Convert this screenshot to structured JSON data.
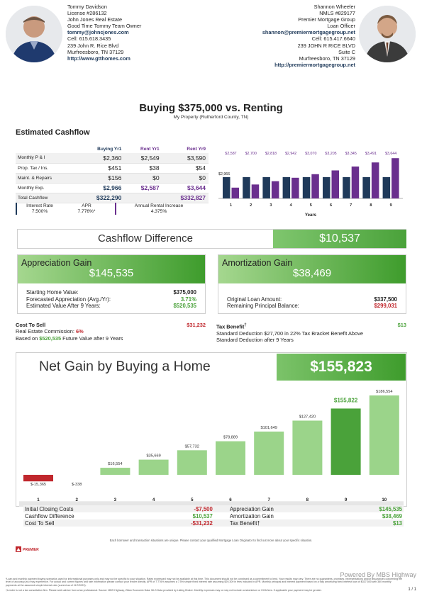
{
  "agents": {
    "left": {
      "name": "Tommy Davidson",
      "license": "License #286132",
      "company": "John Jones Real Estate",
      "team": "Good Time Tommy Team Owner",
      "email": "tommy@johncjones.com",
      "cell": "Cell: 615.618.3435",
      "address1": "239 John R. Rice Blvd",
      "address2": "Murfreesboro,  TN  37129",
      "website": "http://www.gtthomes.com"
    },
    "right": {
      "name": "Shannon Wheeler",
      "nmls": "NMLS #829177",
      "company": "Premier Mortgage Group",
      "role": "Loan Officer",
      "email": "shannon@premiermortgagegroup.net",
      "cell": "Cell: 615.417.6640",
      "address1": "239 JOHN R RICE BLVD",
      "address2": "Suite C",
      "address3": "Murfreesboro,  TN  37129",
      "website": "http://premiermortgagegroup.net"
    }
  },
  "title": "Buying $375,000 vs. Renting",
  "subtitle": "My Property (Rutherford County, TN)",
  "cashflow": {
    "heading": "Estimated Cashflow",
    "columns": [
      "Buying Yr1",
      "Rent Yr1",
      "Rent Yr9"
    ],
    "rows": [
      {
        "label": "Monthly P & I",
        "buy": "$2,360",
        "rent1": "$2,549",
        "rent9": "$3,590"
      },
      {
        "label": "Prop. Tax / Ins.",
        "buy": "$451",
        "rent1": "$38",
        "rent9": "$54"
      },
      {
        "label": "Maint. & Repairs",
        "buy": "$156",
        "rent1": "$0",
        "rent9": "$0"
      },
      {
        "label": "Monthly Exp.",
        "buy": "$2,966",
        "rent1": "$2,587",
        "rent9": "$3,644"
      },
      {
        "label": "Total Cashflow",
        "buy": "$322,290",
        "rent1": "",
        "rent9": "$332,827"
      }
    ],
    "interest_label": "Interest Rate",
    "interest_value": "7.500%",
    "apr_label": "APR",
    "apr_value": "7.776%*",
    "rent_increase_label": "Annual Rental Increase",
    "rent_increase_value": "4.375%"
  },
  "chart_data": [
    {
      "type": "bar",
      "categories": [
        "1",
        "2",
        "3",
        "4",
        "5",
        "6",
        "7",
        "8",
        "9"
      ],
      "xlabel": "Years",
      "series": [
        {
          "values": [
            2966,
            2966,
            2966,
            2966,
            2966,
            2966,
            2966,
            2966,
            2966
          ]
        },
        {
          "values": [
            2587,
            2700,
            2818,
            2942,
            3070,
            3205,
            3345,
            3491,
            3644
          ]
        }
      ],
      "labels_top": [
        "$2,587",
        "$2,700",
        "$2,818",
        "$2,942",
        "$3,070",
        "$3,205",
        "$3,345",
        "$3,491",
        "$3,644"
      ],
      "buy_label": "$2,966",
      "colors": [
        "#1f3a5a",
        "#6a2f8e"
      ]
    },
    {
      "type": "bar",
      "categories": [
        "1",
        "2",
        "3",
        "4",
        "5",
        "6",
        "7",
        "8",
        "9",
        "10"
      ],
      "values": [
        -15365,
        -338,
        16554,
        35669,
        57732,
        78889,
        101649,
        127420,
        155822,
        186554
      ],
      "value_labels": [
        "$-15,365",
        "$-338",
        "$16,554",
        "$35,669",
        "$57,732",
        "$78,889",
        "$101,649",
        "$127,420",
        "$155,822",
        "$186,554"
      ],
      "highlight_index": 8
    }
  ],
  "difference": {
    "label": "Cashflow Difference",
    "value": "$10,537"
  },
  "appreciation": {
    "title": "Appreciation Gain",
    "value": "$145,535",
    "rows": [
      {
        "label": "Starting Home Value:",
        "value": "$375,000"
      },
      {
        "label": "Forecasted Appreciation (Avg./Yr):",
        "value": "3.71%"
      },
      {
        "label": "Estimated Value After 9 Years:",
        "value": "$520,535"
      }
    ]
  },
  "amortization": {
    "title": "Amortization Gain",
    "value": "$38,469",
    "rows": [
      {
        "label": "Original Loan Amount:",
        "value": "$337,500"
      },
      {
        "label": "Remaining Principal Balance:",
        "value": "$299,031"
      }
    ]
  },
  "cost_to_sell": {
    "title": "Cost To Sell",
    "value": "$31,232",
    "line1_prefix": "Real Estate Commission: ",
    "line1_value": "6%",
    "line2_prefix": "Based on ",
    "line2_value": "$520,535",
    "line2_suffix": " Future Value after 9 Years"
  },
  "tax_benefit": {
    "title": "Tax Benefit",
    "dagger": "†",
    "value": "$13",
    "line1": "Standard Deduction $27,700 in 22% Tax Bracket Benefit Above",
    "line2": "Standard Deduction after 9 Years"
  },
  "net_gain": {
    "title": "Net Gain by Buying a Home",
    "value": "$155,823"
  },
  "summary": [
    {
      "left_label": "Initial Closing Costs",
      "left_value": "-$7,500",
      "right_label": "Appreciation Gain",
      "right_value": "$145,535"
    },
    {
      "left_label": "Cashflow Difference",
      "left_value": "$10,537",
      "right_label": "Amortization Gain",
      "right_value": "$38,469"
    },
    {
      "left_label": "Cost To Sell",
      "left_value": "-$31,232",
      "right_label": "Tax Benefit†",
      "right_value": "$13"
    }
  ],
  "footer": {
    "disclaimer": "Each borrower and transaction situations are unique. Please contact your qualified Mortgage Loan Originator to find out more about your specific situation.",
    "logo_text": "PREMIER",
    "powered": "Powered By MBS Highway",
    "fine1": "*Loan and monthly payment buying scenarios used for informational purposes only and may not be specific to your situation. Rates expressed may not be available at this time. This document should not be construed as a commitment to lend. Your results may vary. There are no guarantees, promises, representations and/or assurances concerning the level of accuracy you may experience. For actual and current figures and rate information please contact your lender directly. APR of 7.776% assumes a 7.5% simple fixed interest rate assuming $29,309 in fees included in APR. Monthly principal and interest payment based on a fully amortizing fixed interest loan of $337,500 with 360 monthly payments at the assumed simple interest rate (current as of 11/7/2023).",
    "fine2": "†Lender is not a tax consultation firm. Please seek advice from a tax professional. Source: MBS Highway, Zillow Economic Data. MLS Data provided by Listing Broker. Monthly expenses may or may not include condominium or HOA fees. If applicable your payment may be greater.",
    "page": "1 / 1"
  }
}
